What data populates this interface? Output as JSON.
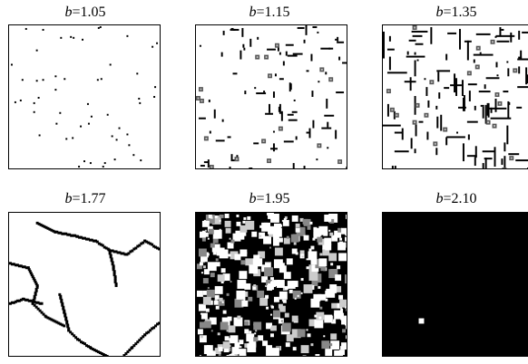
{
  "panels": [
    {
      "var": "b",
      "eq": "=1.05",
      "density": 0.02,
      "background": "#ffffff",
      "ink": "#000000"
    },
    {
      "var": "b",
      "eq": "=1.15",
      "density": 0.1,
      "background": "#ffffff",
      "ink": "#000000"
    },
    {
      "var": "b",
      "eq": "=1.35",
      "density": 0.2,
      "background": "#ffffff",
      "ink": "#000000"
    },
    {
      "var": "b",
      "eq": "=1.77",
      "density": 0.12,
      "background": "#ffffff",
      "ink": "#000000"
    },
    {
      "var": "b",
      "eq": "=1.95",
      "density": 0.6,
      "background": "#000000",
      "ink": "#ffffff"
    },
    {
      "var": "b",
      "eq": "=2.10",
      "density": 0.005,
      "background": "#000000",
      "ink": "#ffffff"
    }
  ]
}
